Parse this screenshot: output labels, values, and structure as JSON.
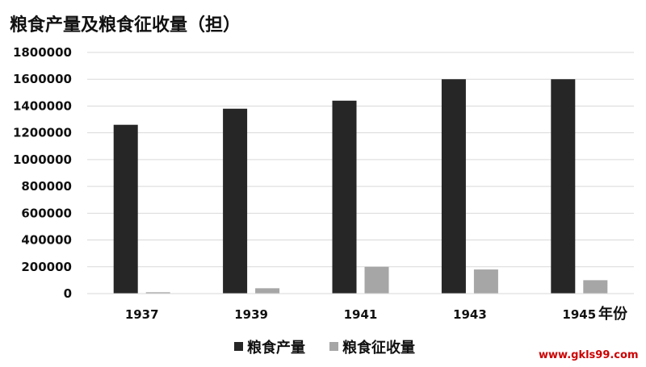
{
  "chart_data": {
    "type": "bar",
    "title": "粮食产量及粮食征收量（担）",
    "xlabel": "年份",
    "ylabel": "",
    "categories": [
      "1937",
      "1939",
      "1941",
      "1943",
      "1945"
    ],
    "series": [
      {
        "name": "粮食产量",
        "color": "#262626",
        "values": [
          1260000,
          1380000,
          1440000,
          1600000,
          1600000
        ]
      },
      {
        "name": "粮食征收量",
        "color": "#a6a6a6",
        "values": [
          10000,
          40000,
          200000,
          180000,
          100000
        ]
      }
    ],
    "ylim": [
      0,
      1800000
    ],
    "yticks": [
      0,
      200000,
      400000,
      600000,
      800000,
      1000000,
      1200000,
      1400000,
      1600000,
      1800000
    ],
    "grid": true,
    "legend_position": "bottom"
  },
  "watermark": "www.gkls99.com"
}
